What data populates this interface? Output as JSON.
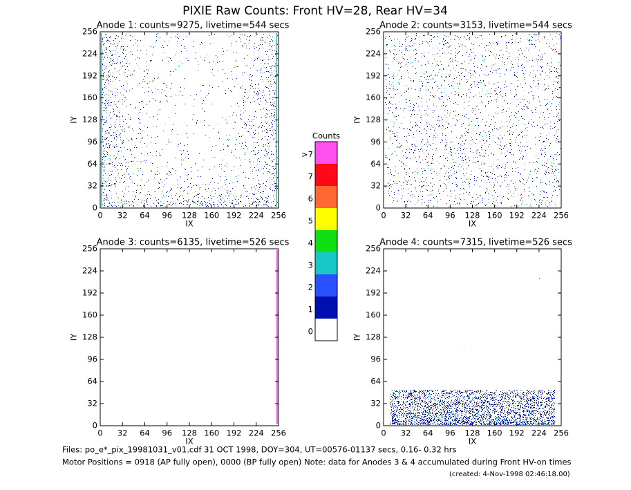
{
  "title": "PIXIE Raw Counts:  Front HV=28, Rear HV=34",
  "chart_data": [
    {
      "type": "heatmap",
      "title": "Anode 1: counts=9275, livetime=544 secs",
      "x_label": "IX",
      "y_label": "IY",
      "xlim": [
        0,
        256
      ],
      "ylim": [
        0,
        256
      ],
      "xticks": [
        0,
        32,
        64,
        96,
        128,
        160,
        192,
        224,
        256
      ],
      "yticks": [
        0,
        32,
        64,
        96,
        128,
        160,
        192,
        224,
        256
      ]
    },
    {
      "type": "heatmap",
      "title": "Anode 2: counts=3153, livetime=544 secs",
      "x_label": "IX",
      "y_label": "IY",
      "xlim": [
        0,
        256
      ],
      "ylim": [
        0,
        256
      ],
      "xticks": [
        0,
        32,
        64,
        96,
        128,
        160,
        192,
        224,
        256
      ],
      "yticks": [
        0,
        32,
        64,
        96,
        128,
        160,
        192,
        224,
        256
      ]
    },
    {
      "type": "heatmap",
      "title": "Anode 3: counts=6135, livetime=526 secs",
      "x_label": "IX",
      "y_label": "IY",
      "xlim": [
        0,
        256
      ],
      "ylim": [
        0,
        256
      ],
      "xticks": [
        0,
        32,
        64,
        96,
        128,
        160,
        192,
        224,
        256
      ],
      "yticks": [
        0,
        32,
        64,
        96,
        128,
        160,
        192,
        224,
        256
      ]
    },
    {
      "type": "heatmap",
      "title": "Anode 4: counts=7315, livetime=526 secs",
      "x_label": "IX",
      "y_label": "IY",
      "xlim": [
        0,
        256
      ],
      "ylim": [
        0,
        256
      ],
      "xticks": [
        0,
        32,
        64,
        96,
        128,
        160,
        192,
        224,
        256
      ],
      "yticks": [
        0,
        32,
        64,
        96,
        128,
        160,
        192,
        224,
        256
      ]
    }
  ],
  "colorbar": {
    "title": "Counts",
    "ticks": [
      0,
      1,
      2,
      3,
      4,
      5,
      6,
      7,
      {
        "value": 8,
        "label": ">7"
      }
    ],
    "colors": [
      "#ffffff",
      "#0010b0",
      "#2850ff",
      "#18c8c8",
      "#10e010",
      "#ffff00",
      "#ff6830",
      "#ff0818",
      "#ff50f0"
    ]
  },
  "footer": [
    "Files: po_e*_pix_19981031_v01.cdf    31 OCT 1998, DOY=304, UT=00576-01137 secs,  0.16- 0.32 hrs",
    "Motor Positions = 0918 (AP fully open), 0000 (BP fully open)    Note: data for Anodes 3 & 4 accumulated during Front HV-on times",
    "(created:  4-Nov-1998 02:46:18.00)"
  ]
}
